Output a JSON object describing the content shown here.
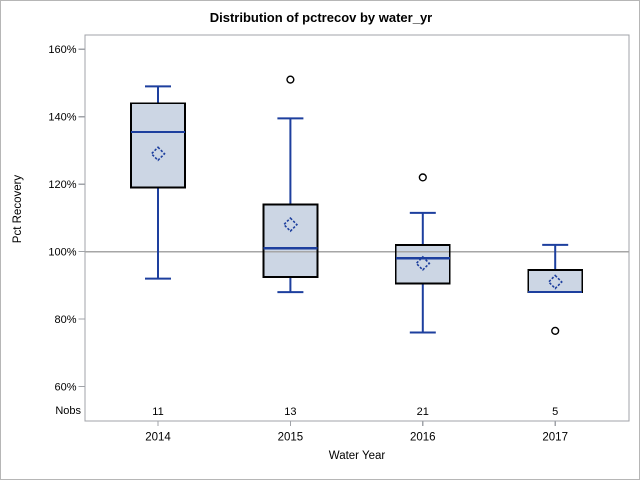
{
  "chart_data": {
    "type": "boxplot",
    "title": "Distribution of pctrecov by water_yr",
    "xlabel": "Water Year",
    "ylabel": "Pct Recovery",
    "nobs_label": "Nobs",
    "y_ticks": [
      {
        "value": 60,
        "label": "60%"
      },
      {
        "value": 80,
        "label": "80%"
      },
      {
        "value": 100,
        "label": "100%"
      },
      {
        "value": 120,
        "label": "120%"
      },
      {
        "value": 140,
        "label": "140%"
      },
      {
        "value": 160,
        "label": "160%"
      }
    ],
    "reference_line": 100,
    "categories": [
      "2014",
      "2015",
      "2016",
      "2017"
    ],
    "nobs": [
      "11",
      "13",
      "21",
      "5"
    ],
    "series": [
      {
        "category": "2014",
        "n": "11",
        "whisker_low": 92,
        "q1": 119,
        "median": 135.5,
        "q3": 144,
        "whisker_high": 149,
        "mean": 129,
        "outliers": []
      },
      {
        "category": "2015",
        "n": "13",
        "whisker_low": 88,
        "q1": 92.5,
        "median": 101,
        "q3": 114,
        "whisker_high": 139.5,
        "mean": 108,
        "outliers": [
          151
        ]
      },
      {
        "category": "2016",
        "n": "21",
        "whisker_low": 76,
        "q1": 90.5,
        "median": 98,
        "q3": 102,
        "whisker_high": 111.5,
        "mean": 96.5,
        "outliers": [
          122
        ]
      },
      {
        "category": "2017",
        "n": "5",
        "whisker_low": 88,
        "q1": 88,
        "median": 88,
        "q3": 94.5,
        "whisker_high": 102,
        "mean": 91,
        "outliers": [
          76.5
        ]
      }
    ],
    "axis_ranges": {
      "y_min": 60,
      "y_max": 160
    },
    "legend": "none",
    "grid": "off",
    "colors": {
      "box_fill": "#ccd6e4",
      "box_stroke": "#000000",
      "line": "#1d3f9e",
      "reference": "#a6a6a6",
      "frame": "#a0a3a8",
      "text": "#000000"
    }
  }
}
